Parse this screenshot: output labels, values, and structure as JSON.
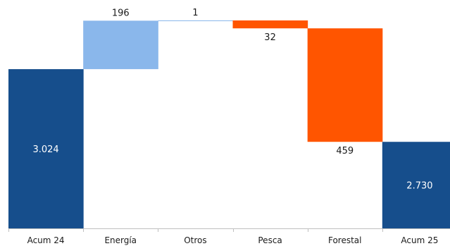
{
  "chart_data": {
    "type": "bar",
    "subtype": "waterfall",
    "categories": [
      "Acum 24",
      "Energía",
      "Otros",
      "Pesca",
      "Forestal",
      "Acum 25"
    ],
    "steps": [
      {
        "category": "Acum 24",
        "kind": "total",
        "value": 3024,
        "label": "3.024",
        "color": "#164e8c"
      },
      {
        "category": "Energía",
        "kind": "increase",
        "value": 196,
        "label": "196",
        "color": "#8ab7eb"
      },
      {
        "category": "Otros",
        "kind": "increase",
        "value": 1,
        "label": "1",
        "color": "#8ab7eb"
      },
      {
        "category": "Pesca",
        "kind": "decrease",
        "value": -32,
        "label": "32",
        "color": "#ff5500"
      },
      {
        "category": "Forestal",
        "kind": "decrease",
        "value": -459,
        "label": "459",
        "color": "#ff5500"
      },
      {
        "category": "Acum 25",
        "kind": "total",
        "value": 2730,
        "label": "2.730",
        "color": "#164e8c"
      }
    ],
    "ylim": [
      2380,
      3270
    ],
    "xlabel": "",
    "ylabel": "",
    "title": "",
    "grid": false,
    "legend": "none"
  },
  "colors": {
    "total": "#164e8c",
    "increase": "#8ab7eb",
    "decrease": "#ff5500",
    "axis": "#bfbfbf",
    "text": "#1a1a1a"
  }
}
